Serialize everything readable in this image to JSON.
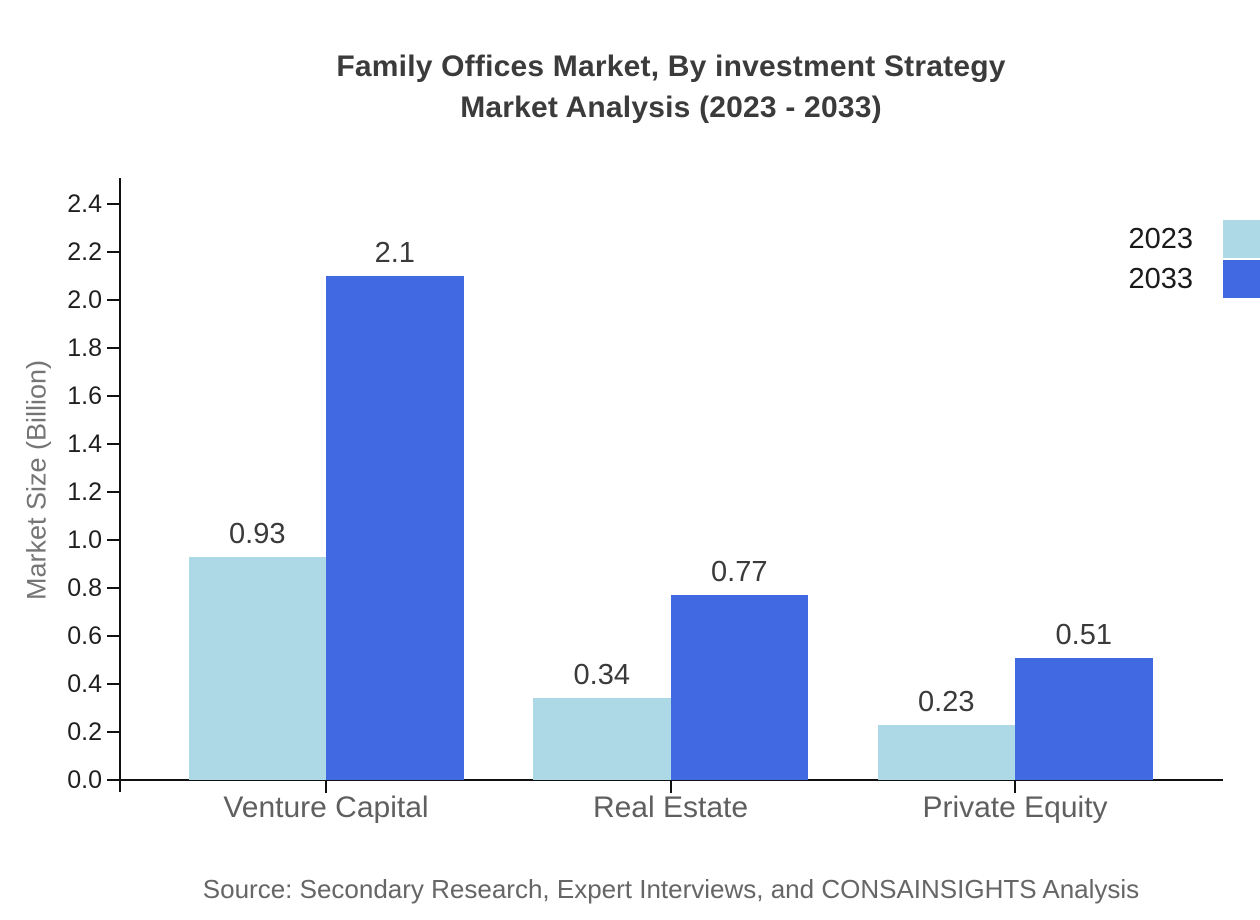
{
  "chart_data": {
    "type": "bar",
    "title_lines": [
      "Family Offices Market, By investment Strategy",
      "Market Analysis (2023 - 2033)"
    ],
    "ylabel": "Market Size (Billion)",
    "categories": [
      "Venture Capital",
      "Real Estate",
      "Private Equity"
    ],
    "series": [
      {
        "name": "2023",
        "color": "#ADD8E6",
        "values": [
          0.93,
          0.34,
          0.23
        ],
        "labels": [
          "0.93",
          "0.34",
          "0.23"
        ]
      },
      {
        "name": "2033",
        "color": "#4169E1",
        "values": [
          2.1,
          0.77,
          0.51
        ],
        "labels": [
          "2.1",
          "0.77",
          "0.51"
        ]
      }
    ],
    "ylim": [
      0,
      2.5
    ],
    "yticks": [
      0.0,
      0.2,
      0.4,
      0.6,
      0.8,
      1.0,
      1.2,
      1.4,
      1.6,
      1.8,
      2.0,
      2.2,
      2.4
    ],
    "grid": false,
    "legend_position": "upper-right",
    "source": "Source: Secondary Research, Expert Interviews, and CONSAINSIGHTS Analysis"
  },
  "colors": {
    "series_2023": "#ADD8E6",
    "series_2033": "#4169E1",
    "title_text": "#3B3B3B",
    "axis": "#111111",
    "tick_label": "#1F1F1F",
    "category_label": "#5F5F5F",
    "value_label": "#3A3A3A",
    "legend_label": "#1A1A1A",
    "source_text": "#666666",
    "ylabel_text": "#757575",
    "background": "#FFFFFF"
  }
}
